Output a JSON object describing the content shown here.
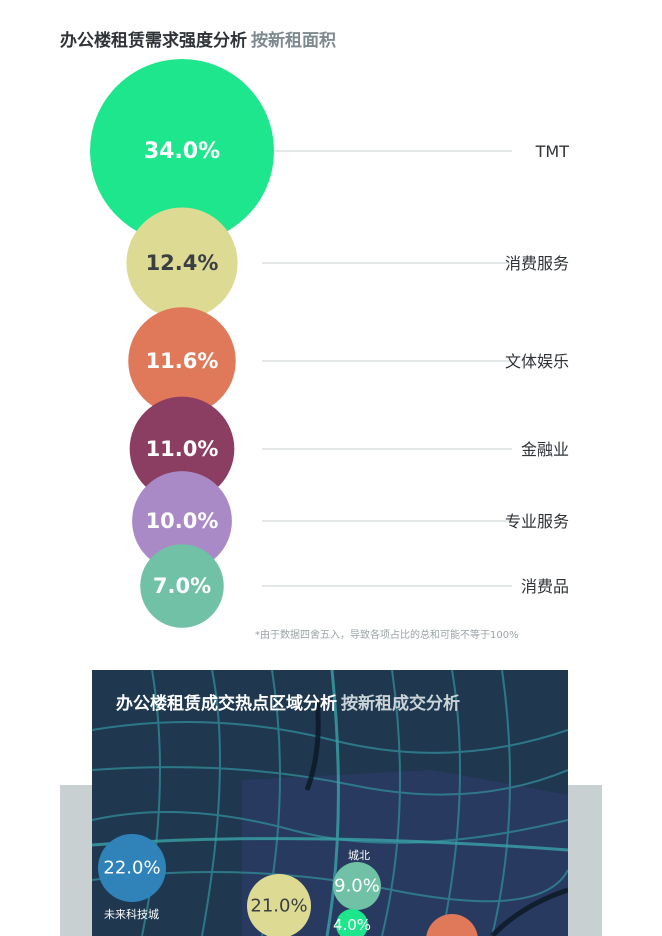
{
  "chart_data": [
    {
      "type": "bubble",
      "title": "办公楼租赁需求强度分析",
      "subtitle": "按新租面积",
      "categories": [
        "TMT",
        "消费服务",
        "文体娱乐",
        "金融业",
        "专业服务",
        "消费品"
      ],
      "values": [
        34.0,
        12.4,
        11.6,
        11.0,
        10.0,
        7.0
      ],
      "value_labels": [
        "34.0%",
        "12.4%",
        "11.6%",
        "11.0%",
        "10.0%",
        "7.0%"
      ],
      "colors": [
        "#1ee68c",
        "#dcda93",
        "#e0795a",
        "#8c3d62",
        "#a98ac6",
        "#70c1a5"
      ],
      "label_colors": [
        "#ffffff",
        "#3b3f42",
        "#ffffff",
        "#ffffff",
        "#ffffff",
        "#ffffff"
      ],
      "note": "*由于数据四舍五入，导致各项占比的总和可能不等于100%"
    },
    {
      "type": "bubble-map",
      "title": "办公楼租赁成交热点区域分析",
      "subtitle": "按新租成交分析",
      "points": [
        {
          "label": "未来科技城",
          "value": 22.0,
          "display": "22.0%",
          "color": "#2f83b8"
        },
        {
          "label": "",
          "value": 21.0,
          "display": "21.0%",
          "color": "#dcda93"
        },
        {
          "label": "城北",
          "value": 9.0,
          "display": "9.0%",
          "color": "#70c1a5"
        },
        {
          "label": "",
          "value": 4.0,
          "display": "4.0%",
          "color": "#1ee68c"
        },
        {
          "label": "",
          "value": null,
          "display": "",
          "color": "#e0795a"
        }
      ]
    }
  ]
}
